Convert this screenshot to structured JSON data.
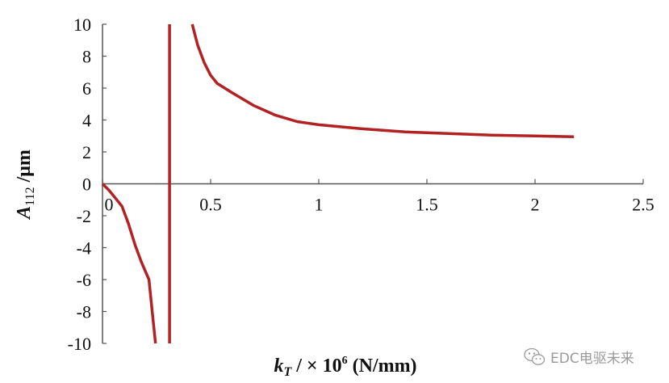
{
  "chart_data": {
    "type": "line",
    "title": "",
    "xlabel": {
      "var": "k",
      "sub": "T",
      "mid": " / × 10",
      "sup": "6",
      "unit": " (N/mm)"
    },
    "ylabel": {
      "var": "A",
      "sub": "112",
      "unit": " /μm"
    },
    "xlim": [
      0,
      2.5
    ],
    "ylim": [
      -10,
      10
    ],
    "x_ticks": [
      "0",
      "0.5",
      "1",
      "1.5",
      "2",
      "2.5"
    ],
    "x_tick_values": [
      0,
      0.5,
      1,
      1.5,
      2,
      2.5
    ],
    "y_ticks": [
      "10",
      "8",
      "6",
      "4",
      "2",
      "0",
      "-2",
      "-4",
      "-6",
      "-8",
      "-10"
    ],
    "y_tick_values": [
      10,
      8,
      6,
      4,
      2,
      0,
      -2,
      -4,
      -6,
      -8,
      -10
    ],
    "series": [
      {
        "color": "#b22222",
        "segments": [
          [
            [
              0,
              0
            ],
            [
              0.03,
              -0.4
            ],
            [
              0.06,
              -0.9
            ],
            [
              0.09,
              -1.4
            ],
            [
              0.12,
              -2.5
            ],
            [
              0.15,
              -3.8
            ],
            [
              0.18,
              -4.9
            ],
            [
              0.215,
              -6.0
            ],
            [
              0.23,
              -8.0
            ],
            [
              0.245,
              -10.0
            ]
          ],
          [
            [
              0.31,
              -10.0
            ],
            [
              0.31,
              10.0
            ]
          ],
          [
            [
              0.415,
              10.0
            ],
            [
              0.44,
              8.7
            ],
            [
              0.47,
              7.6
            ],
            [
              0.5,
              6.8
            ],
            [
              0.53,
              6.3
            ],
            [
              0.6,
              5.7
            ],
            [
              0.7,
              4.9
            ],
            [
              0.8,
              4.3
            ],
            [
              0.9,
              3.9
            ],
            [
              1.0,
              3.7
            ],
            [
              1.2,
              3.45
            ],
            [
              1.4,
              3.25
            ],
            [
              1.6,
              3.15
            ],
            [
              1.8,
              3.05
            ],
            [
              2.0,
              3.0
            ],
            [
              2.18,
              2.95
            ]
          ]
        ]
      }
    ],
    "grid": false,
    "legend": "none"
  },
  "watermark": {
    "text": "EDC电驱未来",
    "icon": "wechat-icon"
  }
}
